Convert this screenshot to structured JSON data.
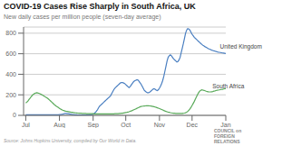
{
  "chart_data": {
    "type": "line",
    "title": "COVID-19 Cases Rise Sharply in South Africa, UK",
    "subtitle": "New daily cases per million people (seven-day average)",
    "annotations": [
      "Source: Johns Hopkins University, compiled by Our World in Data.",
      "COUNCIL on\nFOREIGN\nRELATIONS"
    ],
    "xlim": [
      -2,
      184
    ],
    "xticks": [
      {
        "value": 0,
        "label": "Jul"
      },
      {
        "value": 31,
        "label": "Aug"
      },
      {
        "value": 62,
        "label": "Sep"
      },
      {
        "value": 92,
        "label": "Oct"
      },
      {
        "value": 123,
        "label": "Nov"
      },
      {
        "value": 153,
        "label": "Dec"
      },
      {
        "value": 184,
        "label": "Jan"
      }
    ],
    "ylim": [
      0,
      860
    ],
    "yticks": [
      0,
      200,
      400,
      600,
      800
    ],
    "grid": true,
    "series": [
      {
        "name": "United Kingdom",
        "color": "#4a7fc1",
        "values": [
          5,
          5,
          5,
          5,
          5,
          5,
          5,
          5,
          5,
          5,
          5,
          5,
          5,
          5,
          5,
          5,
          5,
          5,
          5,
          5,
          5,
          5,
          5,
          5,
          5,
          5,
          5,
          5,
          5,
          5,
          6,
          7,
          8,
          10,
          12,
          15,
          18,
          18,
          17,
          16,
          14,
          12,
          10,
          8,
          7,
          6,
          5,
          5,
          4,
          4,
          4,
          3,
          3,
          3,
          3,
          3,
          3,
          4,
          4,
          5,
          6,
          8,
          12,
          18,
          28,
          40,
          55,
          75,
          90,
          100,
          110,
          120,
          130,
          140,
          150,
          160,
          170,
          180,
          190,
          210,
          230,
          250,
          265,
          275,
          285,
          295,
          305,
          315,
          320,
          320,
          315,
          310,
          300,
          290,
          280,
          270,
          280,
          295,
          310,
          325,
          335,
          340,
          345,
          345,
          335,
          320,
          305,
          285,
          265,
          245,
          235,
          225,
          220,
          220,
          225,
          235,
          245,
          255,
          260,
          255,
          245,
          240,
          250,
          265,
          285,
          310,
          340,
          380,
          430,
          480,
          530,
          565,
          580,
          590,
          580,
          565,
          550,
          540,
          530,
          520,
          525,
          540,
          565,
          610,
          655,
          700,
          750,
          800,
          830,
          845,
          840,
          830,
          810,
          790,
          775,
          760,
          750,
          740,
          730,
          720,
          710,
          700,
          690,
          682,
          675,
          668,
          662,
          656,
          650,
          645,
          640,
          635,
          632,
          628,
          625,
          622,
          619,
          616,
          614,
          612,
          610,
          608,
          606,
          604,
          602
        ]
      },
      {
        "name": "South Africa",
        "color": "#5aaa5a",
        "values": [
          120,
          128,
          140,
          155,
          168,
          182,
          195,
          205,
          212,
          217,
          220,
          218,
          215,
          210,
          205,
          200,
          193,
          186,
          180,
          174,
          167,
          158,
          148,
          138,
          128,
          118,
          108,
          98,
          90,
          83,
          76,
          68,
          62,
          56,
          51,
          47,
          43,
          40,
          38,
          36,
          34,
          32,
          30,
          29,
          27,
          26,
          24,
          23,
          22,
          21,
          21,
          20,
          19,
          19,
          18,
          18,
          17,
          17,
          17,
          16,
          16,
          16,
          16,
          15,
          15,
          15,
          15,
          14,
          14,
          14,
          14,
          14,
          14,
          14,
          14,
          14,
          14,
          14,
          14,
          15,
          15,
          15,
          16,
          16,
          17,
          17,
          18,
          19,
          20,
          21,
          23,
          25,
          27,
          29,
          32,
          35,
          39,
          43,
          47,
          52,
          57,
          62,
          67,
          72,
          77,
          82,
          86,
          88,
          90,
          91,
          92,
          93,
          93,
          93,
          92,
          91,
          89,
          87,
          84,
          81,
          78,
          74,
          70,
          66,
          62,
          57,
          52,
          47,
          43,
          38,
          35,
          31,
          29,
          26,
          24,
          22,
          21,
          20,
          19,
          18,
          18,
          18,
          18,
          18,
          19,
          20,
          22,
          25,
          30,
          38,
          50,
          62,
          78,
          96,
          115,
          135,
          158,
          180,
          202,
          220,
          236,
          244,
          248,
          246,
          243,
          239,
          235,
          232,
          229,
          228,
          228,
          230,
          232,
          236,
          238,
          241,
          244,
          246,
          248,
          250,
          252,
          254,
          257,
          259,
          260
        ]
      }
    ]
  }
}
